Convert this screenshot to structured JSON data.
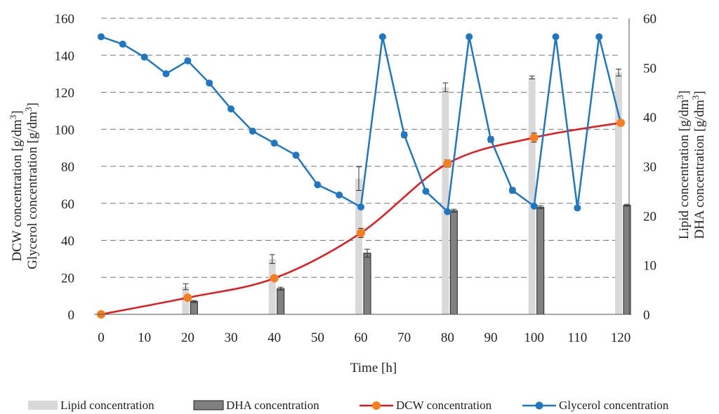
{
  "chart_data": {
    "type": "bar+line",
    "xlabel": "Time [h]",
    "ylabel_left_line1": "DCW concentration [g/dm",
    "ylabel_left_line2": "Glycerol concentration [g/dm",
    "ylabel_right_line1": "Lipid concentration [g/dm",
    "ylabel_right_line2": "DHA concentration [g/dm",
    "unit_sup": "3",
    "unit_close": "]",
    "x_ticks": [
      "0",
      "10",
      "20",
      "30",
      "40",
      "50",
      "60",
      "70",
      "80",
      "90",
      "100",
      "110",
      "120"
    ],
    "x_range": [
      0,
      120
    ],
    "y_left_range": [
      0,
      160
    ],
    "y_left_ticks": [
      "0",
      "20",
      "40",
      "60",
      "80",
      "100",
      "120",
      "140",
      "160"
    ],
    "y_right_range": [
      0,
      60
    ],
    "y_right_ticks": [
      "0",
      "10",
      "20",
      "30",
      "40",
      "50",
      "60"
    ],
    "grid": "horizontal dashed",
    "legend_position": "bottom",
    "bar_series": [
      {
        "name": "Lipid concentration",
        "axis": "right",
        "color": "#d9d9d9",
        "x": [
          20,
          40,
          60,
          80,
          100,
          120
        ],
        "values": [
          5.6,
          11.2,
          27.5,
          46.0,
          48.0,
          49.0
        ],
        "errors": [
          0.6,
          0.9,
          2.4,
          0.9,
          0.3,
          0.7
        ]
      },
      {
        "name": "DHA concentration",
        "axis": "right",
        "color": "#808080",
        "x": [
          20,
          40,
          60,
          80,
          100,
          120
        ],
        "values": [
          2.6,
          5.2,
          12.4,
          21.0,
          21.7,
          22.1
        ],
        "errors": [
          0.2,
          0.3,
          0.8,
          0.3,
          0.3,
          0.2
        ]
      }
    ],
    "line_series": [
      {
        "name": "DCW concentration",
        "axis": "left",
        "color": "#e31a1c",
        "marker_color": "#f57f20",
        "x": [
          0,
          20,
          40,
          60,
          80,
          100,
          120
        ],
        "values": [
          0,
          9,
          19.5,
          44,
          81.5,
          95.5,
          103.5
        ],
        "errors": [
          0,
          1,
          1,
          2.5,
          2,
          2.5,
          1
        ]
      },
      {
        "name": "Glycerol concentration",
        "axis": "left",
        "color": "#1f77c4",
        "marker_color": "#1f77c4",
        "x": [
          0,
          5,
          10,
          15,
          20,
          25,
          30,
          35,
          40,
          45,
          50,
          55,
          60,
          65,
          70,
          75,
          80,
          85,
          90,
          95,
          100,
          105,
          110,
          115,
          120
        ],
        "values": [
          150,
          146,
          139,
          130,
          137,
          125,
          111,
          99,
          92.5,
          86,
          70,
          64.5,
          58,
          150,
          97,
          66.5,
          55.5,
          150,
          94.5,
          67,
          58.5,
          150,
          57.5,
          150,
          103.5
        ],
        "errors": [
          0,
          0,
          0,
          0,
          0,
          0,
          0,
          0,
          0,
          0,
          0,
          0,
          0,
          0,
          1.5,
          0,
          0,
          0,
          1.5,
          1.5,
          0,
          0,
          0,
          0,
          0
        ]
      }
    ]
  }
}
